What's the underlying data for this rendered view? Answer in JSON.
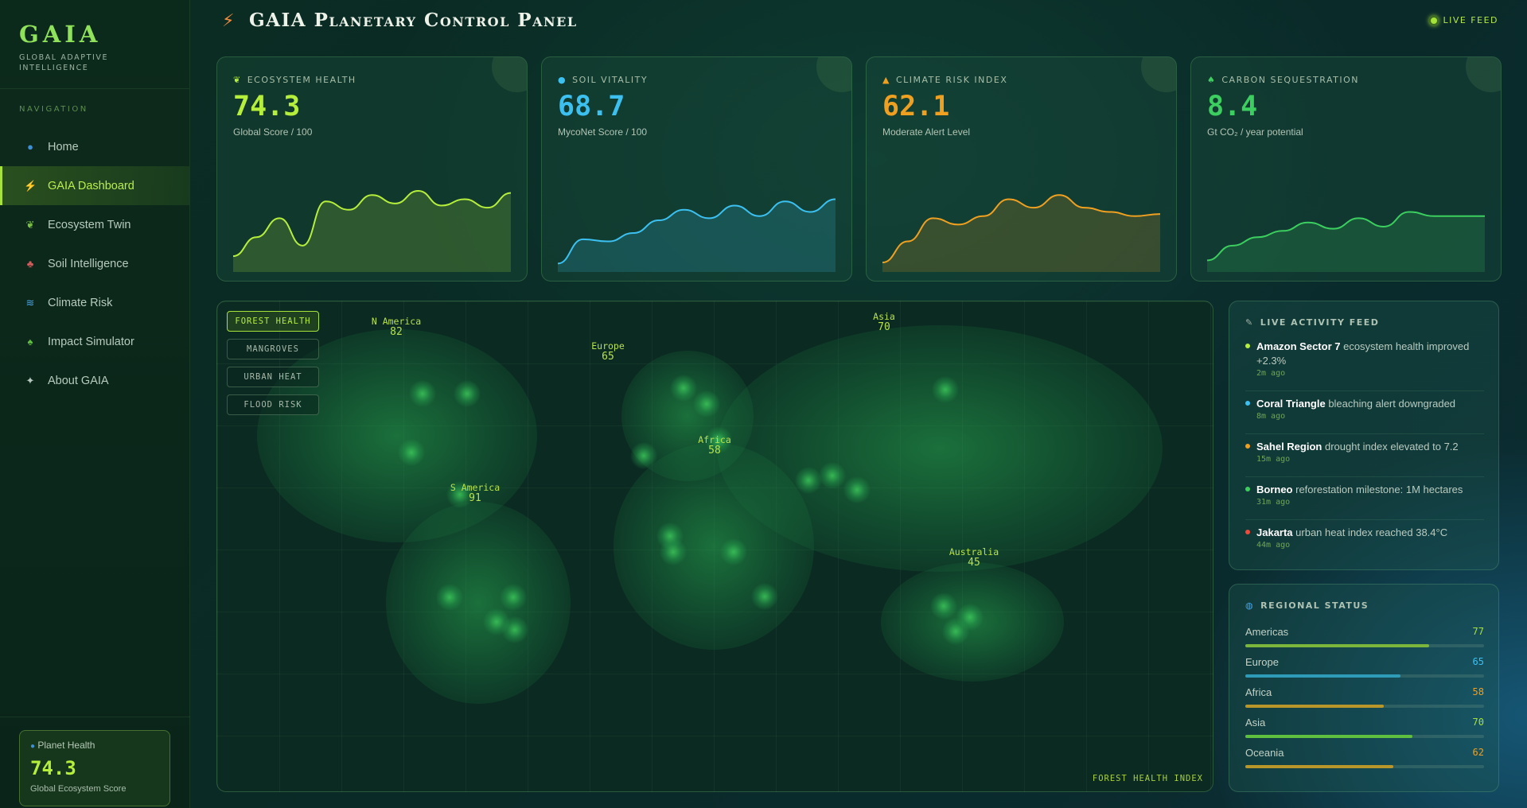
{
  "brand": {
    "title": "GAIA",
    "subtitle": "GLOBAL ADAPTIVE INTELLIGENCE"
  },
  "nav": {
    "heading": "NAVIGATION",
    "items": [
      {
        "label": "Home",
        "icon": "globe-icon",
        "glyph": "●",
        "color": "#3f8fd6"
      },
      {
        "label": "GAIA Dashboard",
        "icon": "lightning-icon",
        "glyph": "⚡",
        "color": "#f08a3a"
      },
      {
        "label": "Ecosystem Twin",
        "icon": "plant-icon",
        "glyph": "❦",
        "color": "#7bc043"
      },
      {
        "label": "Soil Intelligence",
        "icon": "mushroom-icon",
        "glyph": "♣",
        "color": "#d45b5b"
      },
      {
        "label": "Climate Risk",
        "icon": "wave-icon",
        "glyph": "≋",
        "color": "#4aa3e0"
      },
      {
        "label": "Impact Simulator",
        "icon": "sprout-icon",
        "glyph": "♠",
        "color": "#5fbf3f"
      },
      {
        "label": "About GAIA",
        "icon": "sparkle-icon",
        "glyph": "✦",
        "color": "#b8c8c0"
      }
    ],
    "active_index": 1
  },
  "planet": {
    "label": "Planet Health",
    "value": "74.3",
    "sub": "Global Ecosystem Score"
  },
  "header": {
    "title": "GAIA Planetary Control Panel",
    "live": "LIVE FEED"
  },
  "cards": [
    {
      "label": "ECOSYSTEM HEALTH",
      "icon": "leaf-icon",
      "glyph": "❦",
      "value": "74.3",
      "sub": "Global Score / 100",
      "color": "#b6ee3c"
    },
    {
      "label": "SOIL VITALITY",
      "icon": "droplet-icon",
      "glyph": "●",
      "value": "68.7",
      "sub": "MycoNet Score / 100",
      "color": "#3cc0f0"
    },
    {
      "label": "CLIMATE RISK INDEX",
      "icon": "warning-icon",
      "glyph": "▲",
      "value": "62.1",
      "sub": "Moderate Alert Level",
      "color": "#f0a020"
    },
    {
      "label": "CARBON SEQUESTRATION",
      "icon": "sprout-icon",
      "glyph": "♠",
      "value": "8.4",
      "sub": "Gt CO₂ / year potential",
      "color": "#3ccf60"
    }
  ],
  "map": {
    "layers": [
      {
        "label": "FOREST HEALTH",
        "active": true
      },
      {
        "label": "MANGROVES",
        "active": false
      },
      {
        "label": "URBAN HEAT",
        "active": false
      },
      {
        "label": "FLOOD RISK",
        "active": false
      }
    ],
    "regions": [
      {
        "name": "N America",
        "value": "82"
      },
      {
        "name": "Europe",
        "value": "65"
      },
      {
        "name": "Asia",
        "value": "70"
      },
      {
        "name": "Africa",
        "value": "58"
      },
      {
        "name": "S America",
        "value": "91"
      },
      {
        "name": "Australia",
        "value": "45"
      }
    ],
    "legend": "FOREST HEALTH INDEX"
  },
  "feed": {
    "title": "LIVE ACTIVITY FEED",
    "items": [
      {
        "place": "Amazon Sector 7",
        "text": " ecosystem health improved +2.3%",
        "time": "2m ago",
        "color": "#b6ee3c"
      },
      {
        "place": "Coral Triangle",
        "text": " bleaching alert downgraded",
        "time": "8m ago",
        "color": "#3cc0f0"
      },
      {
        "place": "Sahel Region",
        "text": " drought index elevated to 7.2",
        "time": "15m ago",
        "color": "#f0a020"
      },
      {
        "place": "Borneo",
        "text": " reforestation milestone: 1M hectares",
        "time": "31m ago",
        "color": "#3ccf60"
      },
      {
        "place": "Jakarta",
        "text": " urban heat index reached 38.4°C",
        "time": "44m ago",
        "color": "#f04a3a"
      }
    ]
  },
  "regional": {
    "title": "REGIONAL STATUS",
    "rows": [
      {
        "name": "Americas",
        "value": "77",
        "fraction": 0.77,
        "color": "#a6e23a",
        "bar": "#7cb63a"
      },
      {
        "name": "Europe",
        "value": "65",
        "fraction": 0.65,
        "color": "#3cc0f0",
        "bar": "#2e9bb8"
      },
      {
        "name": "Africa",
        "value": "58",
        "fraction": 0.58,
        "color": "#f0a020",
        "bar": "#b8962a"
      },
      {
        "name": "Asia",
        "value": "70",
        "fraction": 0.7,
        "color": "#a6e23a",
        "bar": "#5fbf3f"
      },
      {
        "name": "Oceania",
        "value": "62",
        "fraction": 0.62,
        "color": "#f0a020",
        "bar": "#b8962a"
      }
    ]
  }
}
